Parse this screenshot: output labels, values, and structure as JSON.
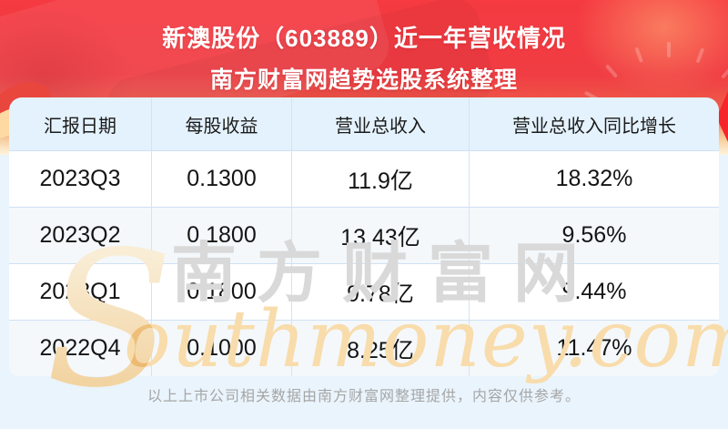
{
  "banner": {
    "title": "新澳股份（603889）近一年营收情况",
    "subtitle": "南方财富网趋势选股系统整理"
  },
  "table": {
    "columns": [
      "汇报日期",
      "每股收益",
      "营业总收入",
      "营业总收入同比增长"
    ],
    "rows": [
      [
        "2023Q3",
        "0.1300",
        "11.9亿",
        "18.32%"
      ],
      [
        "2023Q2",
        "0.1800",
        "13.43亿",
        "9.56%"
      ],
      [
        "2023Q1",
        "0.1800",
        "9.78亿",
        "9.44%"
      ],
      [
        "2022Q4",
        "0.1000",
        "8.25亿",
        "11.47%"
      ]
    ]
  },
  "watermark": {
    "initial": "S",
    "cn": "南方财富网",
    "en": "outhmoney.com"
  },
  "footer": {
    "disclaimer": "以上上市公司相关数据由南方财富网整理提供，内容仅供参考。"
  },
  "colors": {
    "banner_red": "#f03c43",
    "banner_cream": "#f6d4a0",
    "header_bg": "#e4f2fd",
    "row_even_bg": "#f4f8fb",
    "page_bg": "#eaf4fc",
    "border_blue": "#cfe0f3",
    "watermark_grey": "#d9d9d9",
    "watermark_orange": "#f8dcab",
    "footer_grey": "#a6a6a6"
  },
  "chart_data": {
    "type": "table",
    "title": "新澳股份（603889）近一年营收情况",
    "subtitle": "南方财富网趋势选股系统整理",
    "categories": [
      "2023Q3",
      "2023Q2",
      "2023Q1",
      "2022Q4"
    ],
    "series": [
      {
        "name": "每股收益",
        "values": [
          0.13,
          0.18,
          0.18,
          0.1
        ]
      },
      {
        "name": "营业总收入(亿)",
        "values": [
          11.9,
          13.43,
          9.78,
          8.25
        ]
      },
      {
        "name": "营业总收入同比增长(%)",
        "values": [
          18.32,
          9.56,
          9.44,
          11.47
        ]
      }
    ]
  }
}
